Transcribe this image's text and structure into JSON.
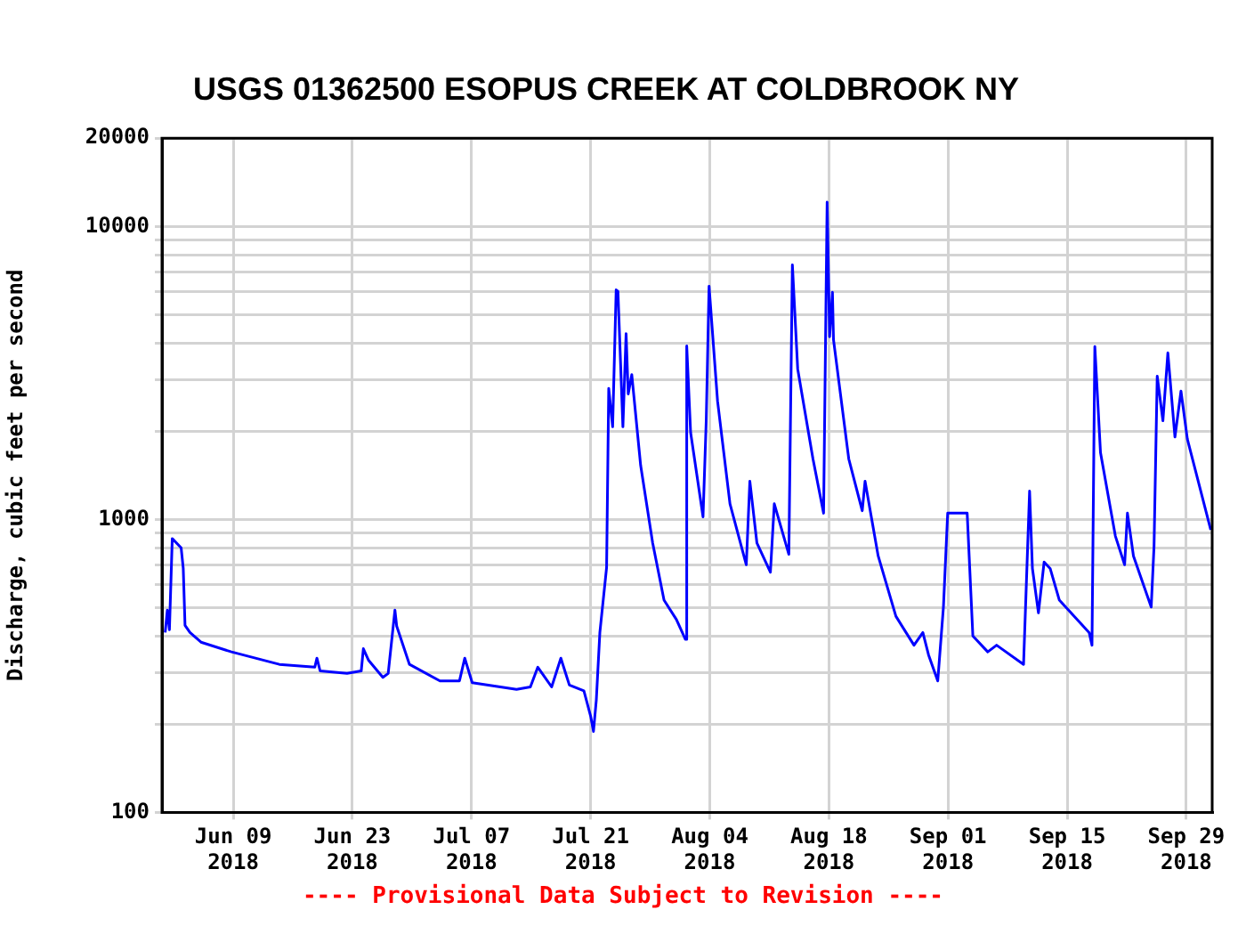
{
  "chart_data": {
    "type": "line",
    "title": "USGS 01362500 ESOPUS CREEK AT COLDBROOK NY",
    "ylabel": "Discharge, cubic feet per second",
    "annotations": [
      "---- Provisional Data Subject to Revision ----"
    ],
    "log": "y",
    "grid": true,
    "marker": "none",
    "line_style": "solid",
    "xlim": [
      "2018-05-31T15:00",
      "2018-10-02T01:00"
    ],
    "xticks": [
      {
        "value": "2018-06-09",
        "label": "Jun 09\n2018"
      },
      {
        "value": "2018-06-23",
        "label": "Jun 23\n2018"
      },
      {
        "value": "2018-07-07",
        "label": "Jul 07\n2018"
      },
      {
        "value": "2018-07-21",
        "label": "Jul 21\n2018"
      },
      {
        "value": "2018-08-04",
        "label": "Aug 04\n2018"
      },
      {
        "value": "2018-08-18",
        "label": "Aug 18\n2018"
      },
      {
        "value": "2018-09-01",
        "label": "Sep 01\n2018"
      },
      {
        "value": "2018-09-15",
        "label": "Sep 15\n2018"
      },
      {
        "value": "2018-09-29",
        "label": "Sep 29\n2018"
      }
    ],
    "ylim": [
      100,
      20000
    ],
    "yticks": [
      100,
      {
        "value": 200,
        "label": null
      },
      {
        "value": 300,
        "label": null
      },
      {
        "value": 400,
        "label": null
      },
      {
        "value": 500,
        "label": null
      },
      {
        "value": 600,
        "label": null
      },
      {
        "value": 700,
        "label": null
      },
      {
        "value": 800,
        "label": null
      },
      {
        "value": 900,
        "label": null
      },
      1000,
      {
        "value": 2000,
        "label": null
      },
      {
        "value": 3000,
        "label": null
      },
      {
        "value": 4000,
        "label": null
      },
      {
        "value": 5000,
        "label": null
      },
      {
        "value": 6000,
        "label": null
      },
      {
        "value": 7000,
        "label": null
      },
      {
        "value": 8000,
        "label": null
      },
      {
        "value": 9000,
        "label": null
      },
      10000,
      20000
    ],
    "series": [
      {
        "color": "#0000ff",
        "x": [
          "2018-06-01T00:00",
          "2018-06-01T06:00",
          "2018-06-01T12:00",
          "2018-06-01T20:00",
          "2018-06-02T21:00",
          "2018-06-03T03:00",
          "2018-06-03T08:00",
          "2018-06-03T22:00",
          "2018-06-05T05:00",
          "2018-06-08T19:00",
          "2018-06-14T10:00",
          "2018-06-18T14:00",
          "2018-06-18T20:00",
          "2018-06-19T05:00",
          "2018-06-22T09:00",
          "2018-06-24T01:00",
          "2018-06-24T07:00",
          "2018-06-24T22:00",
          "2018-06-26T14:00",
          "2018-06-27T05:00",
          "2018-06-28T00:00",
          "2018-06-28T05:00",
          "2018-06-29T17:00",
          "2018-07-03T07:00",
          "2018-07-05T14:00",
          "2018-07-06T05:00",
          "2018-07-07T02:00",
          "2018-07-12T07:00",
          "2018-07-13T22:00",
          "2018-07-14T19:00",
          "2018-07-16T10:00",
          "2018-07-17T12:00",
          "2018-07-18T12:00",
          "2018-07-20T05:00",
          "2018-07-21T00:00",
          "2018-07-21T08:00",
          "2018-07-21T16:00",
          "2018-07-22T02:00",
          "2018-07-22T21:00",
          "2018-07-23T03:00",
          "2018-07-23T14:00",
          "2018-07-24T00:00",
          "2018-07-24T05:00",
          "2018-07-24T19:00",
          "2018-07-25T04:00",
          "2018-07-25T10:00",
          "2018-07-25T20:00",
          "2018-07-26T21:00",
          "2018-07-28T07:00",
          "2018-07-29T15:00",
          "2018-07-31T02:00",
          "2018-08-01T03:00",
          "2018-08-01T07:00",
          "2018-08-01T18:00",
          "2018-08-03T05:00",
          "2018-08-03T14:00",
          "2018-08-03T22:00",
          "2018-08-04T22:00",
          "2018-08-06T09:00",
          "2018-08-08T07:00",
          "2018-08-08T17:00",
          "2018-08-09T13:00",
          "2018-08-11T03:00",
          "2018-08-11T14:00",
          "2018-08-13T07:00",
          "2018-08-13T17:00",
          "2018-08-14T08:00",
          "2018-08-16T03:00",
          "2018-08-17T09:00",
          "2018-08-17T19:00",
          "2018-08-18T02:00",
          "2018-08-18T10:00",
          "2018-08-18T13:00",
          "2018-08-20T08:00",
          "2018-08-21T22:00",
          "2018-08-22T06:00",
          "2018-08-23T19:00",
          "2018-08-25T21:00",
          "2018-08-28T00:00",
          "2018-08-29T01:00",
          "2018-08-29T17:00",
          "2018-08-30T19:00",
          "2018-08-31T11:00",
          "2018-08-31T23:00",
          "2018-09-03T06:00",
          "2018-09-03T22:00",
          "2018-09-05T16:00",
          "2018-09-06T17:00",
          "2018-09-09T21:00",
          "2018-09-10T14:00",
          "2018-09-10T22:00",
          "2018-09-11T15:00",
          "2018-09-12T07:00",
          "2018-09-13T00:00",
          "2018-09-14T02:00",
          "2018-09-17T14:00",
          "2018-09-17T22:00",
          "2018-09-18T06:00",
          "2018-09-18T22:00",
          "2018-09-20T16:00",
          "2018-09-21T18:00",
          "2018-09-22T02:00",
          "2018-09-22T19:00",
          "2018-09-24T21:00",
          "2018-09-25T05:00",
          "2018-09-25T14:00",
          "2018-09-26T06:00",
          "2018-09-26T20:00",
          "2018-09-27T16:00",
          "2018-09-28T09:00",
          "2018-09-29T03:00",
          "2018-10-01T21:00"
        ],
        "values": [
          411,
          490,
          420,
          860,
          800,
          680,
          435,
          411,
          381,
          353,
          320,
          313,
          336,
          304,
          298,
          304,
          362,
          330,
          289,
          298,
          490,
          432,
          320,
          281,
          281,
          336,
          277,
          263,
          268,
          313,
          268,
          336,
          272,
          260,
          213,
          189,
          242,
          411,
          685,
          2800,
          2070,
          6070,
          6000,
          2070,
          4300,
          2680,
          3120,
          1530,
          830,
          530,
          455,
          390,
          3910,
          1980,
          1020,
          2170,
          6250,
          2530,
          1130,
          700,
          1350,
          830,
          660,
          1130,
          760,
          7390,
          3260,
          1610,
          1050,
          12100,
          4200,
          5960,
          4100,
          1610,
          1070,
          1350,
          750,
          467,
          372,
          411,
          345,
          281,
          502,
          1050,
          1050,
          400,
          353,
          372,
          320,
          1250,
          680,
          480,
          715,
          680,
          530,
          411,
          372,
          3890,
          1690,
          877,
          700,
          1050,
          750,
          502,
          810,
          3080,
          2170,
          3700,
          1910,
          2740,
          1880,
          920
        ]
      }
    ]
  }
}
